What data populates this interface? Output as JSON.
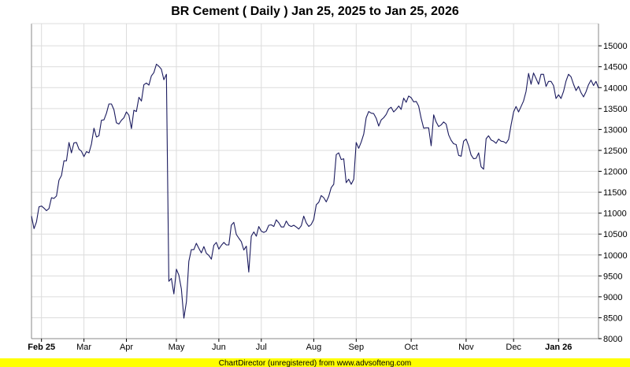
{
  "chart_data": {
    "type": "line",
    "title": "BR Cement ( Daily ) Jan 25, 2025 to Jan 25, 2026",
    "xlabel": "",
    "ylabel": "",
    "ylim": [
      8000,
      15530
    ],
    "yticks": [
      8000,
      8500,
      9000,
      9500,
      10000,
      10500,
      11000,
      11500,
      12000,
      12500,
      13000,
      13500,
      14000,
      14500,
      15000
    ],
    "y_axis_side": "right",
    "grid": true,
    "line_color": "#1a1a5e",
    "x_ticks": [
      {
        "label": "Feb 25",
        "index": 4,
        "major": true
      },
      {
        "label": "Mar",
        "index": 21
      },
      {
        "label": "Apr",
        "index": 38
      },
      {
        "label": "May",
        "index": 58
      },
      {
        "label": "Jun",
        "index": 75
      },
      {
        "label": "Jul",
        "index": 92
      },
      {
        "label": "Aug",
        "index": 113
      },
      {
        "label": "Sep",
        "index": 130
      },
      {
        "label": "Oct",
        "index": 152
      },
      {
        "label": "Nov",
        "index": 174
      },
      {
        "label": "Dec",
        "index": 193
      },
      {
        "label": "Jan 26",
        "index": 211,
        "major": true
      }
    ],
    "values": [
      10930,
      10630,
      10790,
      11150,
      11170,
      11120,
      11060,
      11110,
      11370,
      11350,
      11410,
      11790,
      11900,
      12250,
      12250,
      12690,
      12440,
      12680,
      12690,
      12530,
      12480,
      12350,
      12470,
      12440,
      12650,
      13030,
      12820,
      12850,
      13220,
      13230,
      13390,
      13610,
      13610,
      13470,
      13160,
      13130,
      13220,
      13280,
      13420,
      13340,
      13020,
      13460,
      13430,
      13770,
      13680,
      14070,
      14110,
      14060,
      14280,
      14360,
      14560,
      14510,
      14440,
      14190,
      14320,
      9370,
      9440,
      9070,
      9660,
      9520,
      9190,
      8490,
      8880,
      9850,
      10130,
      10130,
      10280,
      10160,
      10050,
      10200,
      10040,
      9990,
      9900,
      10230,
      10300,
      10140,
      10230,
      10300,
      10240,
      10240,
      10710,
      10780,
      10490,
      10400,
      10320,
      10120,
      10210,
      9590,
      10450,
      10550,
      10450,
      10680,
      10570,
      10540,
      10570,
      10710,
      10720,
      10680,
      10840,
      10770,
      10670,
      10670,
      10810,
      10710,
      10680,
      10710,
      10670,
      10620,
      10700,
      10930,
      10770,
      10680,
      10730,
      10850,
      11200,
      11260,
      11420,
      11370,
      11270,
      11400,
      11610,
      11690,
      12400,
      12440,
      12280,
      12300,
      11730,
      11810,
      11690,
      11810,
      12690,
      12550,
      12700,
      12890,
      13280,
      13430,
      13390,
      13380,
      13270,
      13080,
      13230,
      13280,
      13360,
      13490,
      13530,
      13420,
      13480,
      13560,
      13480,
      13750,
      13650,
      13800,
      13760,
      13660,
      13670,
      13560,
      13270,
      13030,
      13040,
      13040,
      12610,
      13350,
      13180,
      13070,
      13110,
      13180,
      13130,
      12870,
      12740,
      12660,
      12640,
      12380,
      12360,
      12720,
      12770,
      12610,
      12390,
      12300,
      12310,
      12440,
      12110,
      12050,
      12780,
      12850,
      12750,
      12720,
      12670,
      12770,
      12720,
      12710,
      12670,
      12760,
      13110,
      13420,
      13550,
      13420,
      13550,
      13680,
      13910,
      14340,
      14080,
      14350,
      14220,
      14080,
      14320,
      14320,
      14030,
      14150,
      14150,
      14050,
      13740,
      13830,
      13740,
      13910,
      14160,
      14320,
      14260,
      14080,
      13930,
      14030,
      13880,
      13780,
      13900,
      14070,
      14180,
      14050,
      14150,
      13990
    ]
  },
  "footer": {
    "text": "ChartDirector (unregistered) from www.advsofteng.com",
    "background": "#ffff00"
  }
}
